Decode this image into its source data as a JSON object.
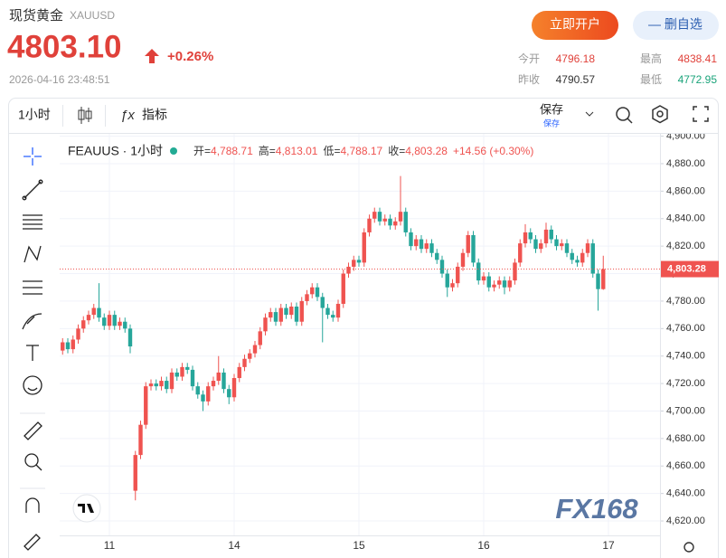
{
  "header": {
    "title": "现货黄金",
    "symbol": "XAUUSD",
    "price": "4803.10",
    "change": "+0.26%",
    "timestamp": "2026-04-16 23:48:51",
    "open_account": "立即开户",
    "remove_watch": "— 删自选",
    "stats": [
      {
        "label": "今开",
        "value": "4796.18",
        "color": "#e0413a"
      },
      {
        "label": "最高",
        "value": "4838.41",
        "color": "#e0413a"
      },
      {
        "label": "昨收",
        "value": "4790.57",
        "color": "#333333"
      },
      {
        "label": "最低",
        "value": "4772.95",
        "color": "#1aa37a"
      }
    ]
  },
  "toolbar": {
    "interval": "1小时",
    "indicators": "指标",
    "save": "保存",
    "save_sub": "保存"
  },
  "watermark": "FX168",
  "chart_data": {
    "type": "candlestick",
    "legend": {
      "symbol": "FEAUUS · 1小时",
      "items": [
        {
          "label": "开=",
          "value": "4,788.71"
        },
        {
          "label": "高=",
          "value": "4,813.01"
        },
        {
          "label": "低=",
          "value": "4,788.17"
        },
        {
          "label": "收=",
          "value": "4,803.28"
        }
      ],
      "change": "+14.56 (+0.30%)"
    },
    "up_color": "#ef5350",
    "down_color": "#26a69a",
    "categories": [
      null,
      null,
      null,
      null,
      null,
      null,
      null,
      null,
      null,
      "11",
      null,
      null,
      null,
      null,
      null,
      null,
      null,
      null,
      null,
      null,
      null,
      null,
      null,
      null,
      null,
      null,
      null,
      null,
      null,
      null,
      null,
      null,
      null,
      "14",
      null,
      null,
      null,
      null,
      null,
      null,
      null,
      null,
      null,
      null,
      null,
      null,
      null,
      null,
      null,
      null,
      null,
      null,
      null,
      null,
      null,
      null,
      null,
      "15",
      null,
      null,
      null,
      null,
      null,
      null,
      null,
      null,
      null,
      null,
      null,
      null,
      null,
      null,
      null,
      null,
      null,
      null,
      null,
      null,
      null,
      null,
      null,
      "16",
      null,
      null,
      null,
      null,
      null,
      null,
      null,
      null,
      null,
      null,
      null,
      null,
      null,
      null,
      null,
      null,
      null,
      null,
      null,
      null,
      null,
      null,
      null,
      "17"
    ],
    "open": [
      4744,
      4750,
      4745,
      4752,
      4760,
      4766,
      4770,
      4775,
      4768,
      4762,
      4770,
      4762,
      4765,
      4760,
      4642,
      4668,
      4690,
      4718,
      4720,
      4718,
      4722,
      4716,
      4728,
      4725,
      4732,
      4730,
      4718,
      4712,
      4707,
      4718,
      4722,
      4728,
      4716,
      4710,
      4724,
      4732,
      4738,
      4742,
      4748,
      4758,
      4768,
      4772,
      4765,
      4775,
      4770,
      4776,
      4765,
      4780,
      4785,
      4790,
      4783,
      4775,
      4770,
      4768,
      4778,
      4800,
      4805,
      4810,
      4808,
      4830,
      4840,
      4845,
      4838,
      4840,
      4835,
      4838,
      4845,
      4830,
      4820,
      4825,
      4818,
      4822,
      4815,
      4810,
      4800,
      4790,
      4793,
      4805,
      4815,
      4828,
      4808,
      4795,
      4798,
      4790,
      4792,
      4795,
      4790,
      4795,
      4808,
      4822,
      4830,
      4825,
      4818,
      4822,
      4832,
      4825,
      4820,
      4822,
      4815,
      4810,
      4808,
      4815,
      4822,
      4800,
      4788.71,
      null
    ],
    "high": [
      4753,
      4753,
      4755,
      4763,
      4769,
      4773,
      4778,
      4793,
      4771,
      4773,
      4773,
      4768,
      4768,
      4763,
      4671,
      4693,
      4721,
      4723,
      4723,
      4725,
      4725,
      4731,
      4731,
      4735,
      4735,
      4733,
      4721,
      4715,
      4721,
      4725,
      4740,
      4731,
      4719,
      4727,
      4735,
      4741,
      4745,
      4751,
      4761,
      4771,
      4775,
      4775,
      4778,
      4778,
      4779,
      4779,
      4783,
      4788,
      4793,
      4793,
      4786,
      4778,
      4773,
      4781,
      4803,
      4808,
      4813,
      4813,
      4833,
      4843,
      4848,
      4848,
      4843,
      4843,
      4841,
      4871,
      4848,
      4833,
      4828,
      4828,
      4825,
      4825,
      4818,
      4813,
      4803,
      4796,
      4808,
      4818,
      4831,
      4831,
      4811,
      4801,
      4801,
      4795,
      4798,
      4798,
      4798,
      4811,
      4825,
      4836,
      4833,
      4828,
      4825,
      4837,
      4835,
      4828,
      4825,
      4825,
      4818,
      4813,
      4818,
      4825,
      4825,
      4803,
      4813.01,
      null
    ],
    "low": [
      4741,
      4742,
      4742,
      4749,
      4757,
      4763,
      4767,
      4765,
      4759,
      4759,
      4759,
      4759,
      4757,
      4742,
      4635,
      4665,
      4687,
      4715,
      4715,
      4715,
      4713,
      4713,
      4722,
      4722,
      4727,
      4715,
      4709,
      4700,
      4704,
      4715,
      4719,
      4713,
      4705,
      4707,
      4721,
      4729,
      4735,
      4739,
      4745,
      4755,
      4765,
      4762,
      4762,
      4767,
      4767,
      4762,
      4762,
      4777,
      4782,
      4780,
      4750,
      4767,
      4765,
      4765,
      4775,
      4797,
      4802,
      4805,
      4805,
      4827,
      4837,
      4835,
      4835,
      4832,
      4832,
      4835,
      4827,
      4817,
      4817,
      4815,
      4815,
      4812,
      4807,
      4797,
      4783,
      4787,
      4790,
      4802,
      4812,
      4805,
      4792,
      4792,
      4787,
      4787,
      4789,
      4785,
      4787,
      4792,
      4805,
      4819,
      4822,
      4815,
      4815,
      4819,
      4822,
      4817,
      4817,
      4812,
      4807,
      4805,
      4805,
      4812,
      4797,
      4773,
      4788.17,
      null
    ],
    "close": [
      4750,
      4745,
      4752,
      4760,
      4766,
      4770,
      4775,
      4768,
      4762,
      4770,
      4762,
      4765,
      4760,
      4747,
      4668,
      4690,
      4718,
      4720,
      4718,
      4722,
      4716,
      4728,
      4725,
      4732,
      4730,
      4718,
      4712,
      4707,
      4718,
      4722,
      4728,
      4716,
      4710,
      4724,
      4732,
      4738,
      4742,
      4748,
      4758,
      4768,
      4772,
      4765,
      4775,
      4770,
      4776,
      4765,
      4780,
      4785,
      4790,
      4783,
      4775,
      4770,
      4768,
      4778,
      4800,
      4805,
      4810,
      4808,
      4830,
      4840,
      4845,
      4838,
      4840,
      4835,
      4838,
      4845,
      4830,
      4820,
      4825,
      4818,
      4822,
      4815,
      4810,
      4800,
      4790,
      4793,
      4805,
      4815,
      4828,
      4808,
      4795,
      4798,
      4790,
      4792,
      4795,
      4790,
      4795,
      4808,
      4822,
      4830,
      4825,
      4818,
      4822,
      4832,
      4825,
      4820,
      4822,
      4815,
      4810,
      4808,
      4815,
      4822,
      4800,
      4788.71,
      4803.28,
      null
    ],
    "ylim": [
      4609.5,
      4901.7
    ],
    "yticks": [
      {
        "value": 4620,
        "label": "4,620.00"
      },
      {
        "value": 4640,
        "label": "4,640.00"
      },
      {
        "value": 4660,
        "label": "4,660.00"
      },
      {
        "value": 4680,
        "label": "4,680.00"
      },
      {
        "value": 4700,
        "label": "4,700.00"
      },
      {
        "value": 4720,
        "label": "4,720.00"
      },
      {
        "value": 4740,
        "label": "4,740.00"
      },
      {
        "value": 4760,
        "label": "4,760.00"
      },
      {
        "value": 4780,
        "label": "4,780.00"
      },
      {
        "value": 4800,
        "label": "4,800.00"
      },
      {
        "value": 4820,
        "label": "4,820.00"
      },
      {
        "value": 4840,
        "label": "4,840.00"
      },
      {
        "value": 4860,
        "label": "4,860.00"
      },
      {
        "value": 4880,
        "label": "4,880.00"
      },
      {
        "value": 4900,
        "label": "4,900.00"
      }
    ],
    "price_line": {
      "value": 4803.28,
      "label": "4,803.28"
    },
    "grid": true
  }
}
